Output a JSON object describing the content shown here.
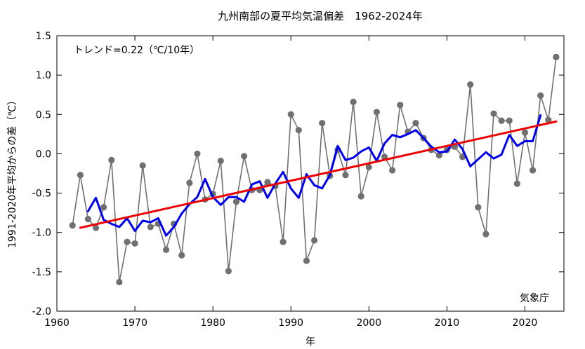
{
  "chart_data": {
    "type": "line",
    "title": "九州南部の夏平均気温偏差　1962-2024年",
    "xlabel": "年",
    "ylabel": "1991-2020年平均からの差（℃）",
    "trend_label": "トレンド=0.22（℃/10年）",
    "source_label": "気象庁",
    "xlim": [
      1960,
      2025
    ],
    "ylim": [
      -2.0,
      1.5
    ],
    "xticks": [
      1960,
      1970,
      1980,
      1990,
      2000,
      2010,
      2020
    ],
    "yticks": [
      -2.0,
      -1.5,
      -1.0,
      -0.5,
      0.0,
      0.5,
      1.0,
      1.5
    ],
    "ytick_labels": [
      "-2.0",
      "-1.5",
      "-1.0",
      "-0.5",
      "0.0",
      "0.5",
      "1.0",
      "1.5"
    ],
    "grid": false,
    "colors": {
      "annual": "#707070",
      "moving_average": "#0000ee",
      "trend": "#ee0000"
    },
    "series": [
      {
        "key": "annual",
        "style": "line+markers",
        "x": [
          1962,
          1963,
          1964,
          1965,
          1966,
          1967,
          1968,
          1969,
          1970,
          1971,
          1972,
          1973,
          1974,
          1975,
          1976,
          1977,
          1978,
          1979,
          1980,
          1981,
          1982,
          1983,
          1984,
          1985,
          1986,
          1987,
          1988,
          1989,
          1990,
          1991,
          1992,
          1993,
          1994,
          1995,
          1996,
          1997,
          1998,
          1999,
          2000,
          2001,
          2002,
          2003,
          2004,
          2005,
          2006,
          2007,
          2008,
          2009,
          2010,
          2011,
          2012,
          2013,
          2014,
          2015,
          2016,
          2017,
          2018,
          2019,
          2020,
          2021,
          2022,
          2023,
          2024
        ],
        "y": [
          -0.91,
          -0.27,
          -0.83,
          -0.94,
          -0.68,
          -0.08,
          -1.63,
          -1.12,
          -1.14,
          -0.15,
          -0.93,
          -0.89,
          -1.22,
          -0.89,
          -1.29,
          -0.37,
          0.0,
          -0.58,
          -0.51,
          -0.09,
          -1.49,
          -0.61,
          -0.03,
          -0.46,
          -0.46,
          -0.36,
          -0.41,
          -1.12,
          0.5,
          0.3,
          -1.36,
          -1.1,
          0.39,
          -0.28,
          0.05,
          -0.27,
          0.66,
          -0.54,
          -0.17,
          0.53,
          -0.04,
          -0.21,
          0.62,
          0.28,
          0.39,
          0.2,
          0.05,
          -0.02,
          0.05,
          0.09,
          -0.04,
          0.88,
          -0.68,
          -1.02,
          0.51,
          0.42,
          0.42,
          -0.38,
          0.27,
          -0.21,
          0.74,
          0.43,
          1.23
        ]
      },
      {
        "key": "moving_average",
        "style": "line",
        "x": [
          1964,
          1965,
          1966,
          1967,
          1968,
          1969,
          1970,
          1971,
          1972,
          1973,
          1974,
          1975,
          1976,
          1977,
          1978,
          1979,
          1980,
          1981,
          1982,
          1983,
          1984,
          1985,
          1986,
          1987,
          1988,
          1989,
          1990,
          1991,
          1992,
          1993,
          1994,
          1995,
          1996,
          1997,
          1998,
          1999,
          2000,
          2001,
          2002,
          2003,
          2004,
          2005,
          2006,
          2007,
          2008,
          2009,
          2010,
          2011,
          2012,
          2013,
          2014,
          2015,
          2016,
          2017,
          2018,
          2019,
          2020,
          2021,
          2022
        ],
        "y": [
          -0.73,
          -0.56,
          -0.84,
          -0.89,
          -0.93,
          -0.82,
          -0.98,
          -0.85,
          -0.87,
          -0.82,
          -1.04,
          -0.93,
          -0.76,
          -0.64,
          -0.55,
          -0.32,
          -0.55,
          -0.65,
          -0.55,
          -0.55,
          -0.61,
          -0.39,
          -0.35,
          -0.56,
          -0.38,
          -0.23,
          -0.44,
          -0.56,
          -0.26,
          -0.4,
          -0.44,
          -0.27,
          0.1,
          -0.08,
          -0.05,
          0.03,
          0.08,
          -0.09,
          0.13,
          0.24,
          0.21,
          0.25,
          0.3,
          0.2,
          0.09,
          0.02,
          0.03,
          0.18,
          0.06,
          -0.16,
          -0.07,
          0.02,
          -0.06,
          -0.01,
          0.24,
          0.1,
          0.16,
          0.16,
          0.49
        ]
      },
      {
        "key": "trend",
        "style": "line",
        "x": [
          1963,
          2024
        ],
        "y": [
          -0.94,
          0.41
        ]
      }
    ]
  }
}
